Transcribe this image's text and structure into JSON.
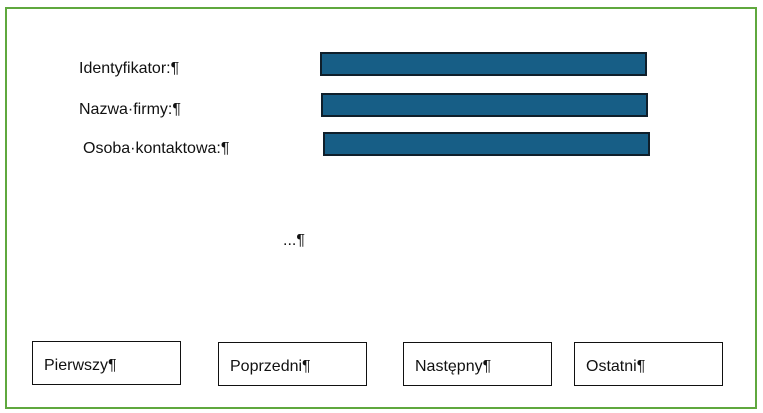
{
  "form": {
    "fields": [
      {
        "label": "Identyfikator:¶",
        "value": ""
      },
      {
        "label": "Nazwa·firmy:¶",
        "value": ""
      },
      {
        "label": "Osoba·kontaktowa:¶",
        "value": ""
      }
    ],
    "ellipsis": "...¶"
  },
  "navigation": {
    "first": "Pierwszy¶",
    "previous": "Poprzedni¶",
    "next": "Następny¶",
    "last": "Ostatni¶"
  },
  "colors": {
    "frame_border": "#5fa83e",
    "field_fill": "#175e86",
    "field_border": "#0f1f2b"
  }
}
